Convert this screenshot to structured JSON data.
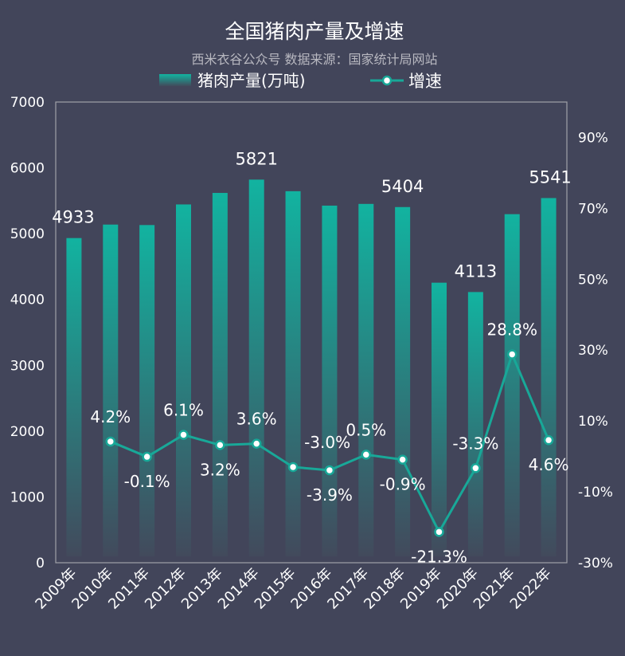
{
  "chart_data": {
    "type": "bar+line",
    "title": "全国猪肉产量及增速",
    "subtitle": "西米衣谷公众号 数据来源：国家统计局网站",
    "legend": {
      "placement": "top",
      "bar_label": "猪肉产量(万吨)",
      "line_label": "增速"
    },
    "categories": [
      "2009年",
      "2010年",
      "2011年",
      "2012年",
      "2013年",
      "2014年",
      "2015年",
      "2016年",
      "2017年",
      "2018年",
      "2019年",
      "2020年",
      "2021年",
      "2022年"
    ],
    "series": [
      {
        "name": "猪肉产量(万吨)",
        "type": "bar",
        "axis": "left",
        "values": [
          4933,
          5138,
          5131,
          5444,
          5619,
          5821,
          5645,
          5426,
          5452,
          5404,
          4255,
          4113,
          5296,
          5541
        ],
        "labeled_values": [
          "4933",
          "",
          "",
          "",
          "",
          "5821",
          "",
          "",
          "",
          "5404",
          "",
          "4113",
          "",
          "5541"
        ]
      },
      {
        "name": "增速",
        "type": "line",
        "axis": "right",
        "values": [
          null,
          4.2,
          -0.1,
          6.1,
          3.2,
          3.6,
          -3.0,
          -3.9,
          0.5,
          -0.9,
          -21.3,
          -3.3,
          28.8,
          4.6
        ],
        "labels": [
          "",
          "4.2%",
          "-0.1%",
          "6.1%",
          "3.2%",
          "3.6%",
          "-3.0%",
          "-3.9%",
          "0.5%",
          "-0.9%",
          "-21.3%",
          "-3.3%",
          "28.8%",
          "4.6%"
        ]
      }
    ],
    "y_left": {
      "ylim": [
        0,
        7000
      ],
      "ticks": [
        "0",
        "1000",
        "2000",
        "3000",
        "4000",
        "5000",
        "6000",
        "7000"
      ]
    },
    "y_right": {
      "ylim": [
        -30,
        100
      ],
      "ticks": [
        "-30%",
        "-10%",
        "10%",
        "30%",
        "50%",
        "70%",
        "90%"
      ],
      "tick_values": [
        -30,
        -10,
        10,
        30,
        50,
        70,
        90
      ]
    },
    "grid": false,
    "colors": {
      "background": "#42455a",
      "bar_top": "#12b3a0",
      "bar_bottom": "#424a5c",
      "line": "#18a898",
      "text": "#ffffff",
      "subtitle": "#b8b8c0",
      "frame": "#a0a0a8"
    }
  }
}
